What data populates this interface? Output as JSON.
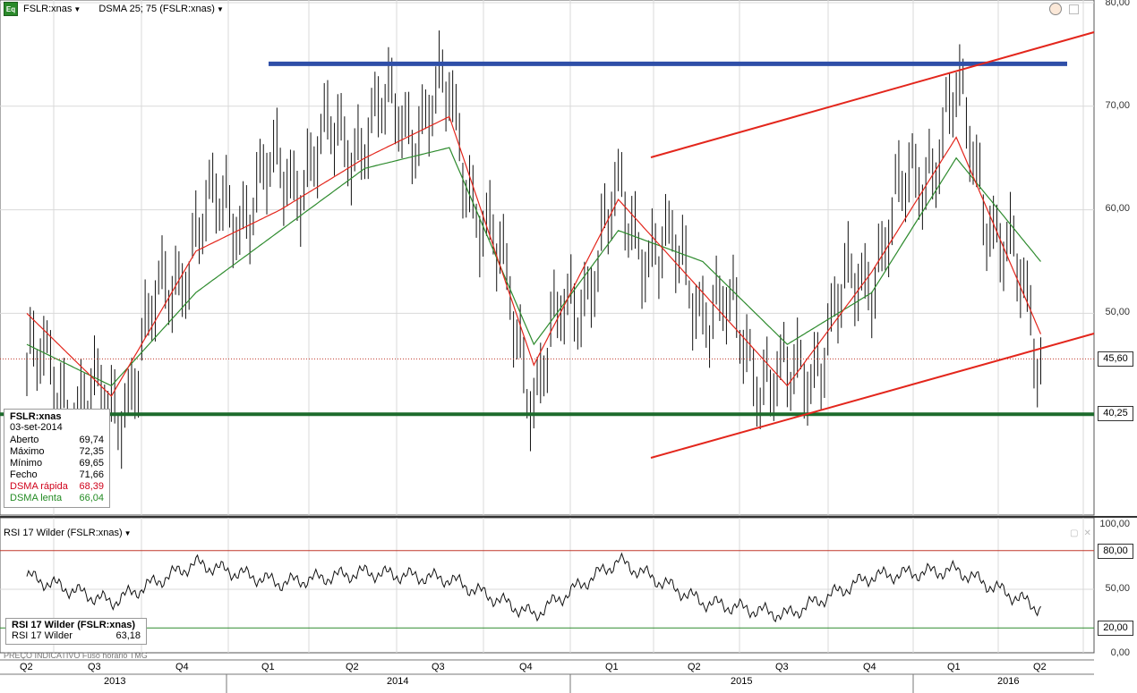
{
  "header": {
    "symbol": "FSLR:xnas",
    "indicator": "DSMA 25; 75 (FSLR:xnas)",
    "eq_icon": "Eq"
  },
  "y_axis_labels": [
    "80,00",
    "70,00",
    "60,00",
    "50,00"
  ],
  "price_badges": {
    "last": "45,60",
    "support": "40,25"
  },
  "info": {
    "title": "FSLR:xnas",
    "date": "03-set-2014",
    "rows": [
      {
        "label": "Aberto",
        "value": "69,74",
        "color": "#000000"
      },
      {
        "label": "Máximo",
        "value": "72,35",
        "color": "#000000"
      },
      {
        "label": "Mínimo",
        "value": "69,65",
        "color": "#000000"
      },
      {
        "label": "Fecho",
        "value": "71,66",
        "color": "#000000"
      },
      {
        "label": "DSMA rápida",
        "value": "68,39",
        "color": "#d0021b"
      },
      {
        "label": "DSMA lenta",
        "value": "66,04",
        "color": "#238b23"
      }
    ]
  },
  "rsi": {
    "title": "RSI 17 Wilder (FSLR:xnas)",
    "box_title": "RSI 17 Wilder (FSLR:xnas)",
    "label": "RSI 17 Wilder",
    "value": "63,18",
    "y_labels": [
      "100,00",
      "50,00",
      "0,00"
    ],
    "badges": [
      "80,00",
      "20,00"
    ]
  },
  "footnote": "PREÇO INDICATIVO   Fuso horário TMG",
  "quarters": [
    "Q2",
    "Q3",
    "Q4",
    "Q1",
    "Q2",
    "Q3",
    "Q4",
    "Q1",
    "Q2",
    "Q3",
    "Q4",
    "Q1",
    "Q2"
  ],
  "years": [
    "2013",
    "2014",
    "2015",
    "2016"
  ],
  "chart_data": {
    "type": "line",
    "series_types": [
      "candlestick/bar",
      "line",
      "line"
    ],
    "ylim": [
      30,
      80
    ],
    "rsi_ylim": [
      0,
      100
    ],
    "grid": true,
    "colors": {
      "fast_ma": "#e3261c",
      "slow_ma": "#2e8b2e",
      "resistance": "#2f4fa8",
      "support": "#1d6b2c",
      "channel": "#e3261c"
    },
    "x_quarters": [
      "2013 Q2",
      "2013 Q3",
      "2013 Q4",
      "2014 Q1",
      "2014 Q2",
      "2014 Q3",
      "2014 Q4",
      "2015 Q1",
      "2015 Q2",
      "2015 Q3",
      "2015 Q4",
      "2016 Q1",
      "2016 Q2"
    ],
    "price_close": [
      45,
      40,
      58,
      63,
      68,
      70,
      43,
      60,
      52,
      42,
      55,
      70,
      46
    ],
    "fast_ma": [
      50,
      42,
      56,
      60,
      65,
      69,
      45,
      61,
      52,
      43,
      54,
      67,
      48
    ],
    "slow_ma": [
      47,
      43,
      52,
      58,
      64,
      66,
      47,
      58,
      55,
      47,
      52,
      65,
      55
    ],
    "rsi_values": [
      60,
      40,
      70,
      55,
      63,
      58,
      30,
      72,
      40,
      30,
      60,
      65,
      35
    ],
    "levels": {
      "resistance": 74.1,
      "support": 40.25,
      "last_price": 45.6,
      "rsi_upper": 80,
      "rsi_lower": 20
    }
  }
}
